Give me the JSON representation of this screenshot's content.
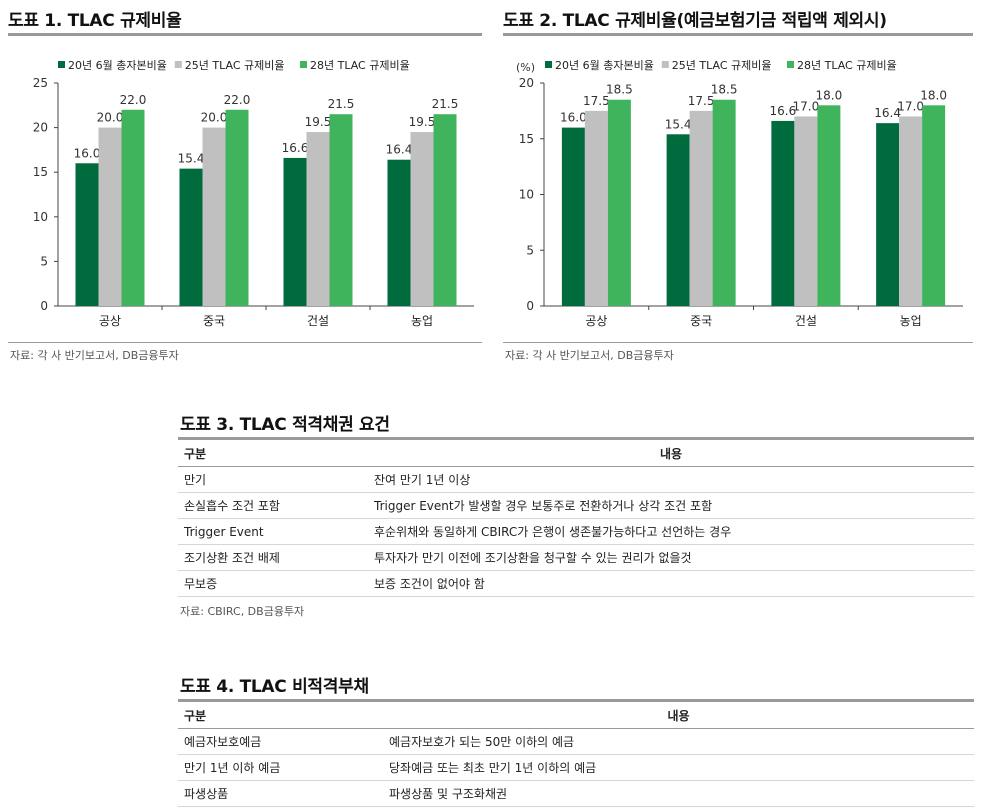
{
  "figures": [
    {
      "title": "도표 1. TLAC 규제비율",
      "source": "자료: 각 사 반기보고서, DB금융투자"
    },
    {
      "title": "도표 2. TLAC 규제비율(예금보험기금 적립액 제외시)",
      "source": "자료: 각 사 반기보고서, DB금융투자"
    }
  ],
  "chart_data": [
    {
      "type": "bar",
      "title": "도표 1. TLAC 규제비율",
      "categories": [
        "공상",
        "중국",
        "건설",
        "농업"
      ],
      "series": [
        {
          "name": "20년 6월 총자본비율",
          "values": [
            16.0,
            15.4,
            16.6,
            16.4
          ]
        },
        {
          "name": "25년 TLAC 규제비율",
          "values": [
            20.0,
            20.0,
            19.5,
            19.5
          ]
        },
        {
          "name": "28년 TLAC 규제비율",
          "values": [
            22.0,
            22.0,
            21.5,
            21.5
          ]
        }
      ],
      "ylim": [
        0,
        25
      ],
      "yticks": [
        0,
        5,
        10,
        15,
        20,
        25
      ],
      "ylabel": "",
      "legend": "top",
      "grid": false,
      "colors": [
        "#006b3c",
        "#c0c0c0",
        "#3fb45c"
      ]
    },
    {
      "type": "bar",
      "title": "도표 2. TLAC 규제비율(예금보험기금 적립액 제외시)",
      "categories": [
        "공상",
        "중국",
        "건설",
        "농업"
      ],
      "series": [
        {
          "name": "20년 6월 총자본비율",
          "values": [
            16.0,
            15.4,
            16.6,
            16.4
          ]
        },
        {
          "name": "25년 TLAC 규제비율",
          "values": [
            17.5,
            17.5,
            17.0,
            17.0
          ]
        },
        {
          "name": "28년 TLAC 규제비율",
          "values": [
            18.5,
            18.5,
            18.0,
            18.0
          ]
        }
      ],
      "ylim": [
        0,
        20
      ],
      "yticks": [
        0,
        5,
        10,
        15,
        20
      ],
      "ylabel": "(%)",
      "legend": "top",
      "grid": false,
      "colors": [
        "#006b3c",
        "#c0c0c0",
        "#3fb45c"
      ]
    }
  ],
  "table3": {
    "title": "도표 3. TLAC 적격채권 요건",
    "headers": [
      "구분",
      "내용"
    ],
    "rows": [
      [
        "만기",
        "잔여 만기 1년 이상"
      ],
      [
        "손실흡수 조건 포함",
        "Trigger Event가 발생할 경우 보통주로 전환하거나 상각 조건 포함"
      ],
      [
        "Trigger Event",
        "후순위채와 동일하게 CBIRC가 은행이 생존불가능하다고 선언하는 경우"
      ],
      [
        "조기상환 조건 배제",
        "투자자가 만기 이전에 조기상환을 청구할 수 있는 권리가 없을것"
      ],
      [
        "무보증",
        "보증 조건이 없어야 함"
      ]
    ],
    "source": "자료: CBIRC, DB금융투자"
  },
  "table4": {
    "title": "도표 4. TLAC 비적격부채",
    "headers": [
      "구분",
      "내용"
    ],
    "rows": [
      [
        "예금자보호예금",
        "예금자보호가 되는 50만 이하의 예금"
      ],
      [
        "만기 1년 이하 예금",
        "당좌예금 또는 최초 만기 1년 이하의 예금"
      ],
      [
        "파생상품",
        "파생상품 및 구조화채권"
      ]
    ]
  }
}
